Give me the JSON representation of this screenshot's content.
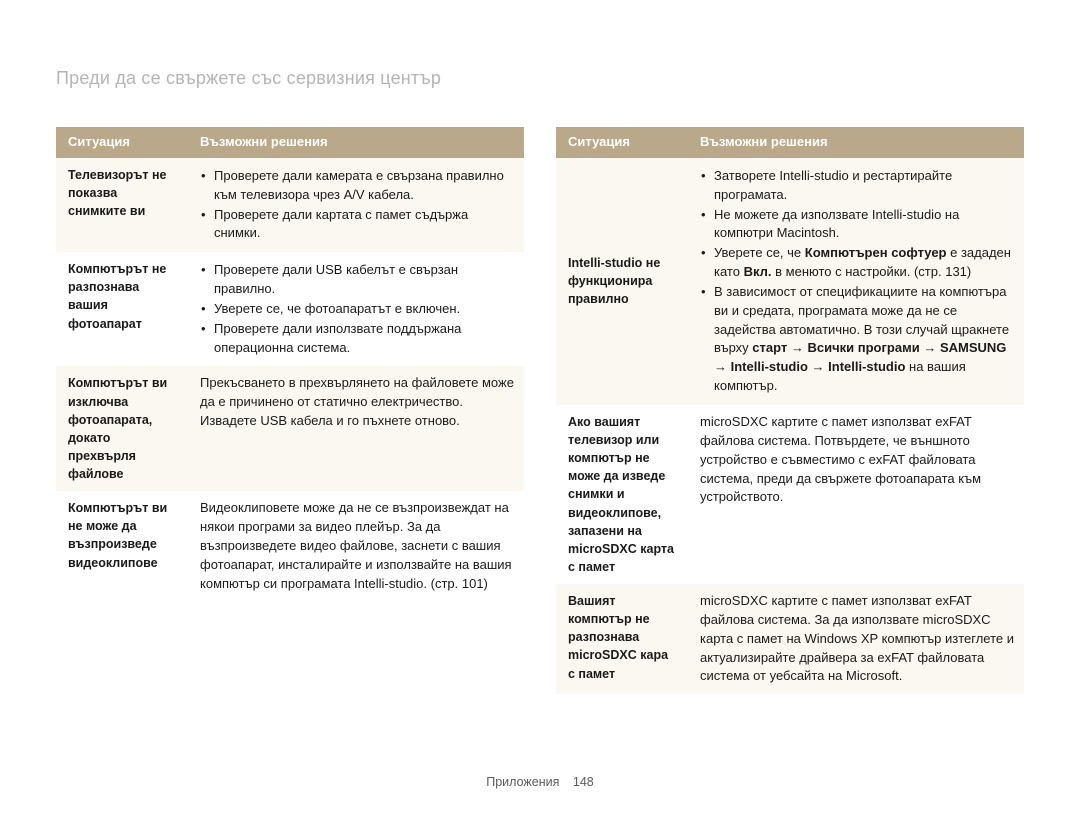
{
  "title": "Преди да се свържете със сервизния център",
  "headers": {
    "situation": "Ситуация",
    "solutions": "Възможни решения"
  },
  "footer": {
    "label": "Приложения",
    "page": "148"
  },
  "colors": {
    "header_bg": "#b9a889",
    "header_text": "#ffffff",
    "zebra_odd": "#faf8f1",
    "zebra_even": "#ffffff",
    "title_color": "#b5b5b5",
    "body_text": "#1a1a1a"
  },
  "left": [
    {
      "situation": "Телевизорът не показва снимките ви",
      "bullets": [
        "Проверете дали камерата е свързана правилно към телевизора чрез A/V кабела.",
        "Проверете дали картата с памет съдържа снимки."
      ]
    },
    {
      "situation": "Компютърът не разпознава вашия фотоапарат",
      "bullets": [
        "Проверете дали USB кабелът е свързан правилно.",
        "Уверете се, че фотоапаратът е включен.",
        "Проверете дали използвате поддържана операционна система."
      ]
    },
    {
      "situation": "Компютърът ви изключва фотоапарата, докато прехвърля файлове",
      "text": "Прекъсването в прехвърлянето на файловете може да е причинено от статично електричество. Извадете USB кабела и го пъхнете отново."
    },
    {
      "situation": "Компютърът ви не може да възпроизведе видеоклипове",
      "text": "Видеоклиповете може да не се възпроизвеждат на някои програми за видео плейър. За да възпроизведете видео файлове, заснети с вашия фотоапарат, инсталирайте и използвайте на вашия компютър си програмата Intelli-studio. (стр. 101)"
    }
  ],
  "right": [
    {
      "situation": "Intelli-studio не функционира правилно",
      "html": "<ul><li>Затворете Intelli-studio и рестартирайте програмата.</li><li>Не можете да използвате Intelli-studio на компютри Macintosh.</li><li>Уверете се, че <b>Компютърен софтуер</b> е зададен като <b>Вкл.</b> в менюто с настройки. (стр. 131)</li><li>В зависимост от спецификациите на компютъра ви и средата, програмата може да не се задейства автоматично. В този случай щракнете върху <b>старт</b> → <b>Всички програми</b> → <b>SAMSUNG</b> → <b>Intelli-studio</b> → <b>Intelli-studio</b> на вашия компютър.</li></ul>"
    },
    {
      "situation": "Ако вашият телевизор или компютър не може да изведе снимки и видеоклипове, запазени на microSDXC карта с памет",
      "text": "microSDXC картите с памет използват exFAT файлова система. Потвърдете, че външното устройство е съвместимо с exFAT файловата система, преди да свържете фотоапарата към устройството."
    },
    {
      "situation": "Вашият компютър не разпознава microSDXC кара с памет",
      "text": "microSDXC картите с памет използват exFAT файлова система. За да използвате microSDXC карта с памет на Windows XP компютър изтеглете и актуализирайте драйвера за exFAT файловата система от уебсайта на Microsoft."
    }
  ]
}
